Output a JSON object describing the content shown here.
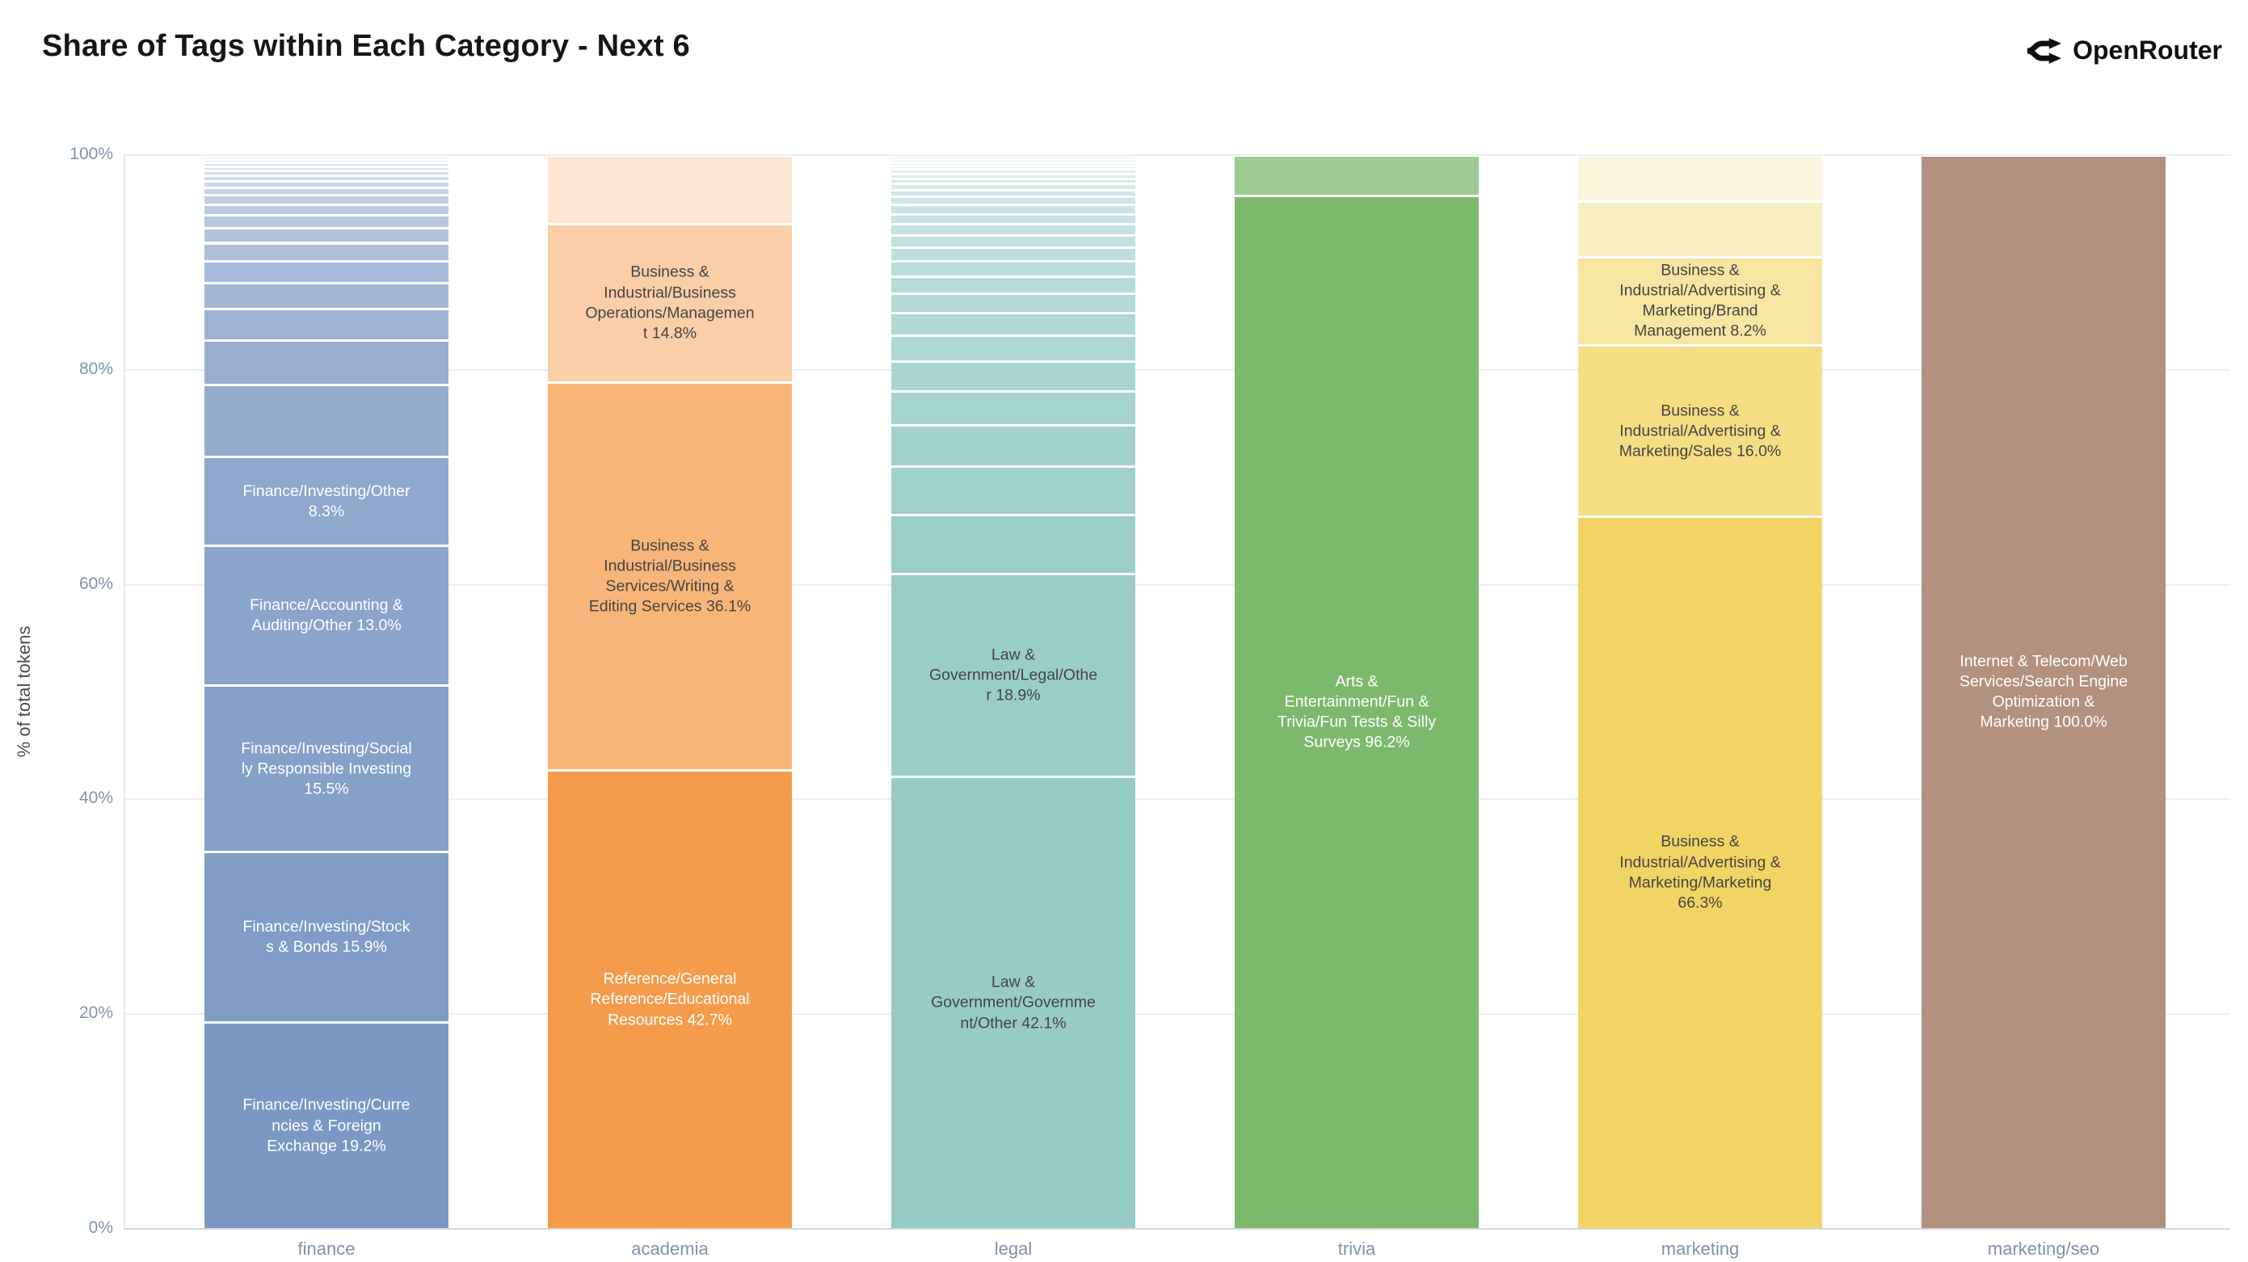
{
  "header": {
    "title": "Share of Tags within Each Category - Next 6",
    "brand": "OpenRouter"
  },
  "colors": {
    "title_text": "#14171a",
    "brand_text": "#0e1013",
    "axis_tick_text": "#7e93a8",
    "y_axis_title_text": "#4d4d4d",
    "gridline": "#edeef0",
    "axis_line": "#d5d9dd",
    "label_dark": "#454545",
    "label_light": "#ffffff",
    "background": "#ffffff"
  },
  "chart_data": {
    "type": "bar",
    "stacked": true,
    "normalized": "percent",
    "title": "Share of Tags within Each Category - Next 6",
    "xlabel": "",
    "ylabel": "% of total tokens",
    "ylim": [
      0,
      100
    ],
    "yticks": [
      0,
      20,
      40,
      60,
      80,
      100
    ],
    "ytick_labels": [
      "0%",
      "20%",
      "40%",
      "60%",
      "80%",
      "100%"
    ],
    "grid": true,
    "legend": false,
    "categories": [
      "finance",
      "academia",
      "legal",
      "trivia",
      "marketing",
      "marketing/seo"
    ],
    "bars": [
      {
        "category": "finance",
        "base_color": "#7b98c5",
        "segments": [
          {
            "tag": "Finance/Investing/Currencies & Foreign Exchange",
            "pct": 19.2,
            "label": "Finance/Investing/Currencies & Foreign Exchange 19.2%",
            "text": "light"
          },
          {
            "tag": "Finance/Investing/Stocks & Bonds",
            "pct": 15.9,
            "label": "Finance/Investing/Stocks & Bonds 15.9%",
            "text": "light"
          },
          {
            "tag": "Finance/Investing/Socially Responsible Investing",
            "pct": 15.5,
            "label": "Finance/Investing/Socially Responsible Investing 15.5%",
            "text": "light"
          },
          {
            "tag": "Finance/Accounting & Auditing/Other",
            "pct": 13.0,
            "label": "Finance/Accounting & Auditing/Other 13.0%",
            "text": "light"
          },
          {
            "tag": "Finance/Investing/Other",
            "pct": 8.3,
            "label": "Finance/Investing/Other 8.3%",
            "text": "light"
          },
          {
            "pct": 6.7
          },
          {
            "pct": 4.1
          },
          {
            "pct": 3.0
          },
          {
            "pct": 2.4
          },
          {
            "pct": 2.0
          },
          {
            "pct": 1.7
          },
          {
            "pct": 1.4
          },
          {
            "pct": 1.2
          },
          {
            "pct": 1.0
          },
          {
            "pct": 0.85
          },
          {
            "pct": 0.7
          },
          {
            "pct": 0.6
          },
          {
            "pct": 0.5
          },
          {
            "pct": 0.45
          },
          {
            "pct": 0.4
          },
          {
            "pct": 0.35
          },
          {
            "pct": 0.3
          },
          {
            "pct": 0.25
          },
          {
            "pct": 0.2
          }
        ]
      },
      {
        "category": "academia",
        "base_color": "#f49c4c",
        "segments": [
          {
            "tag": "Reference/General Reference/Educational Resources",
            "pct": 42.7,
            "label": "Reference/General Reference/Educational Resources 42.7%",
            "text": "light"
          },
          {
            "tag": "Business & Industrial/Business Services/Writing & Editing Services",
            "pct": 36.1,
            "label": "Business & Industrial/Business Services/Writing & Editing Services 36.1%",
            "text": "dark"
          },
          {
            "tag": "Business & Industrial/Business Operations/Management",
            "pct": 14.8,
            "label": "Business & Industrial/Business Operations/Management 14.8%",
            "text": "dark"
          },
          {
            "pct": 6.4
          }
        ]
      },
      {
        "category": "legal",
        "base_color": "#96ccc5",
        "segments": [
          {
            "tag": "Law & Government/Government/Other",
            "pct": 42.1,
            "label": "Law & Government/Government/Other 42.1%",
            "text": "dark"
          },
          {
            "tag": "Law & Government/Legal/Other",
            "pct": 18.9,
            "label": "Law & Government/Legal/Other 18.9%",
            "text": "dark"
          },
          {
            "pct": 5.5
          },
          {
            "pct": 4.5
          },
          {
            "pct": 3.8
          },
          {
            "pct": 3.2
          },
          {
            "pct": 2.8
          },
          {
            "pct": 2.4
          },
          {
            "pct": 2.1
          },
          {
            "pct": 1.8
          },
          {
            "pct": 1.6
          },
          {
            "pct": 1.4
          },
          {
            "pct": 1.3
          },
          {
            "pct": 1.15
          },
          {
            "pct": 1.0
          },
          {
            "pct": 0.95
          },
          {
            "pct": 0.85
          },
          {
            "pct": 0.75
          },
          {
            "pct": 0.65
          },
          {
            "pct": 0.55
          },
          {
            "pct": 0.5
          },
          {
            "pct": 0.45
          },
          {
            "pct": 0.4
          },
          {
            "pct": 0.35
          },
          {
            "pct": 0.3
          },
          {
            "pct": 0.25
          },
          {
            "pct": 0.2
          },
          {
            "pct": 0.15
          },
          {
            "pct": 0.1
          }
        ]
      },
      {
        "category": "trivia",
        "base_color": "#7cb96c",
        "segments": [
          {
            "tag": "Arts & Entertainment/Fun & Trivia/Fun Tests & Silly Surveys",
            "pct": 96.2,
            "label": "Arts & Entertainment/Fun & Trivia/Fun Tests & Silly Surveys 96.2%",
            "text": "light"
          },
          {
            "pct": 3.8
          }
        ]
      },
      {
        "category": "marketing",
        "base_color": "#f1d464",
        "segments": [
          {
            "tag": "Business & Industrial/Advertising & Marketing/Marketing",
            "pct": 66.3,
            "label": "Business & Industrial/Advertising & Marketing/Marketing 66.3%",
            "text": "dark"
          },
          {
            "tag": "Business & Industrial/Advertising & Marketing/Sales",
            "pct": 16.0,
            "label": "Business & Industrial/Advertising & Marketing/Sales 16.0%",
            "text": "dark"
          },
          {
            "tag": "Business & Industrial/Advertising & Marketing/Brand Management",
            "pct": 8.2,
            "label": "Business & Industrial/Advertising & Marketing/Brand Management 8.2%",
            "text": "dark"
          },
          {
            "pct": 5.2
          },
          {
            "pct": 4.3
          }
        ]
      },
      {
        "category": "marketing/seo",
        "base_color": "#b3917f",
        "segments": [
          {
            "tag": "Internet & Telecom/Web Services/Search Engine Optimization & Marketing",
            "pct": 100.0,
            "label": "Internet & Telecom/Web Services/Search Engine Optimization & Marketing 100.0%",
            "text": "light"
          }
        ]
      }
    ]
  }
}
